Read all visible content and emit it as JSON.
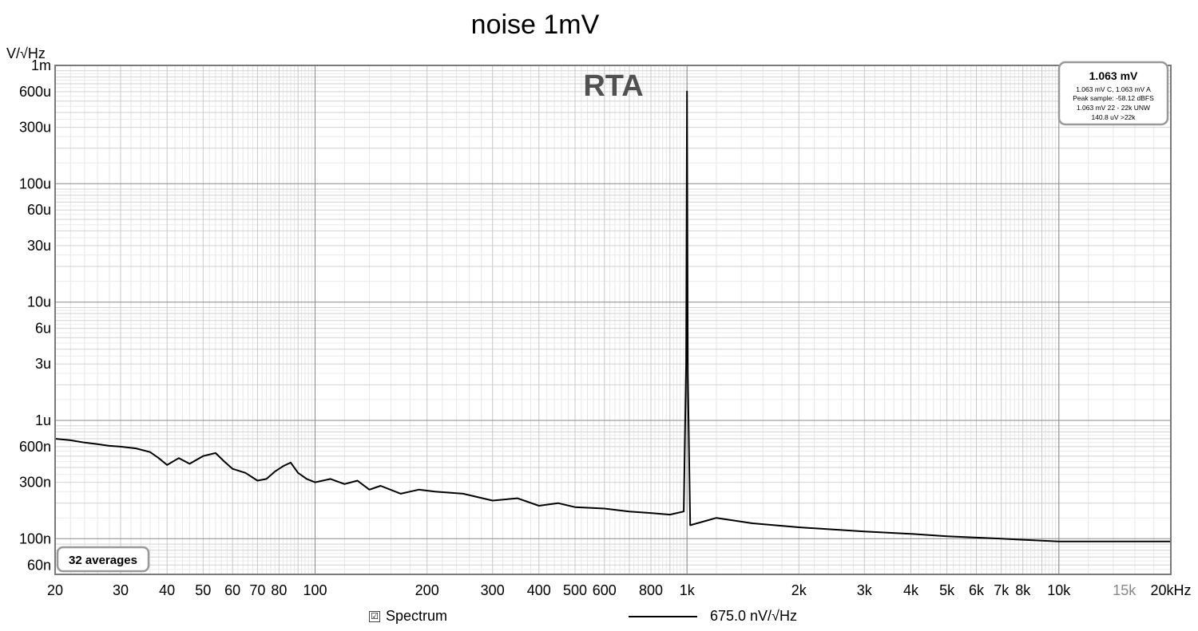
{
  "chart_data": {
    "type": "line",
    "title": "noise 1mV",
    "ylabel": "V/√Hz",
    "xlabel": "",
    "x_scale": "log",
    "y_scale": "log",
    "xlim": [
      20,
      20000
    ],
    "ylim": [
      5e-08,
      0.001
    ],
    "overlay_text": "RTA",
    "x_ticks": [
      {
        "value": 20,
        "label": "20"
      },
      {
        "value": 30,
        "label": "30"
      },
      {
        "value": 40,
        "label": "40"
      },
      {
        "value": 50,
        "label": "50"
      },
      {
        "value": 60,
        "label": "60"
      },
      {
        "value": 70,
        "label": "70"
      },
      {
        "value": 80,
        "label": "80"
      },
      {
        "value": 100,
        "label": "100"
      },
      {
        "value": 200,
        "label": "200"
      },
      {
        "value": 300,
        "label": "300"
      },
      {
        "value": 400,
        "label": "400"
      },
      {
        "value": 500,
        "label": "500"
      },
      {
        "value": 600,
        "label": "600"
      },
      {
        "value": 800,
        "label": "800"
      },
      {
        "value": 1000,
        "label": "1k"
      },
      {
        "value": 2000,
        "label": "2k"
      },
      {
        "value": 3000,
        "label": "3k"
      },
      {
        "value": 4000,
        "label": "4k"
      },
      {
        "value": 5000,
        "label": "5k"
      },
      {
        "value": 6000,
        "label": "6k"
      },
      {
        "value": 7000,
        "label": "7k"
      },
      {
        "value": 8000,
        "label": "8k"
      },
      {
        "value": 10000,
        "label": "10k"
      },
      {
        "value": 15000,
        "label": "15k",
        "color": "#888888"
      },
      {
        "value": 20000,
        "label": "20kHz"
      }
    ],
    "y_ticks": [
      {
        "value": 0.001,
        "label": "1m"
      },
      {
        "value": 0.0006,
        "label": "600u"
      },
      {
        "value": 0.0003,
        "label": "300u"
      },
      {
        "value": 0.0001,
        "label": "100u"
      },
      {
        "value": 6e-05,
        "label": "60u"
      },
      {
        "value": 3e-05,
        "label": "30u"
      },
      {
        "value": 1e-05,
        "label": "10u"
      },
      {
        "value": 6e-06,
        "label": "6u"
      },
      {
        "value": 3e-06,
        "label": "3u"
      },
      {
        "value": 1e-06,
        "label": "1u"
      },
      {
        "value": 6e-07,
        "label": "600n"
      },
      {
        "value": 3e-07,
        "label": "300n"
      },
      {
        "value": 1e-07,
        "label": "100n"
      },
      {
        "value": 6e-08,
        "label": "60n"
      }
    ],
    "series": [
      {
        "color": "#000000",
        "points": [
          [
            20,
            7e-07
          ],
          [
            22,
            6.8e-07
          ],
          [
            24,
            6.5e-07
          ],
          [
            26,
            6.3e-07
          ],
          [
            28,
            6.1e-07
          ],
          [
            30,
            6e-07
          ],
          [
            33,
            5.8e-07
          ],
          [
            36,
            5.4e-07
          ],
          [
            38,
            4.8e-07
          ],
          [
            40,
            4.2e-07
          ],
          [
            43,
            4.8e-07
          ],
          [
            46,
            4.3e-07
          ],
          [
            50,
            5e-07
          ],
          [
            54,
            5.3e-07
          ],
          [
            57,
            4.5e-07
          ],
          [
            60,
            3.9e-07
          ],
          [
            65,
            3.6e-07
          ],
          [
            70,
            3.1e-07
          ],
          [
            74,
            3.2e-07
          ],
          [
            78,
            3.7e-07
          ],
          [
            82,
            4.1e-07
          ],
          [
            86,
            4.4e-07
          ],
          [
            90,
            3.6e-07
          ],
          [
            95,
            3.2e-07
          ],
          [
            100,
            3e-07
          ],
          [
            110,
            3.2e-07
          ],
          [
            120,
            2.9e-07
          ],
          [
            130,
            3.1e-07
          ],
          [
            140,
            2.6e-07
          ],
          [
            150,
            2.8e-07
          ],
          [
            170,
            2.4e-07
          ],
          [
            190,
            2.6e-07
          ],
          [
            210,
            2.5e-07
          ],
          [
            250,
            2.4e-07
          ],
          [
            300,
            2.1e-07
          ],
          [
            350,
            2.2e-07
          ],
          [
            400,
            1.9e-07
          ],
          [
            450,
            2e-07
          ],
          [
            500,
            1.85e-07
          ],
          [
            600,
            1.8e-07
          ],
          [
            700,
            1.7e-07
          ],
          [
            800,
            1.65e-07
          ],
          [
            900,
            1.6e-07
          ],
          [
            980,
            1.7e-07
          ],
          [
            995,
            3e-06
          ],
          [
            1000,
            0.000603
          ],
          [
            1005,
            2.5e-06
          ],
          [
            1020,
            1.3e-07
          ],
          [
            1200,
            1.5e-07
          ],
          [
            1500,
            1.35e-07
          ],
          [
            2000,
            1.25e-07
          ],
          [
            3000,
            1.15e-07
          ],
          [
            4000,
            1.1e-07
          ],
          [
            5000,
            1.05e-07
          ],
          [
            7000,
            1e-07
          ],
          [
            10000,
            9.5e-08
          ],
          [
            15000,
            9.5e-08
          ],
          [
            20000,
            9.5e-08
          ]
        ]
      }
    ]
  },
  "info_box": {
    "headline": "1.063 mV",
    "lines": [
      "1.063 mV C, 1.063 mV A",
      "Peak sample: -58.12 dBFS",
      "1.063 mV 22 - 22k UNW",
      "140.8 uV >22k"
    ]
  },
  "averages_badge": "32 averages",
  "legend": {
    "checkbox_checked": true,
    "series_name": "Spectrum",
    "value_label": "675.0 nV/√Hz"
  }
}
